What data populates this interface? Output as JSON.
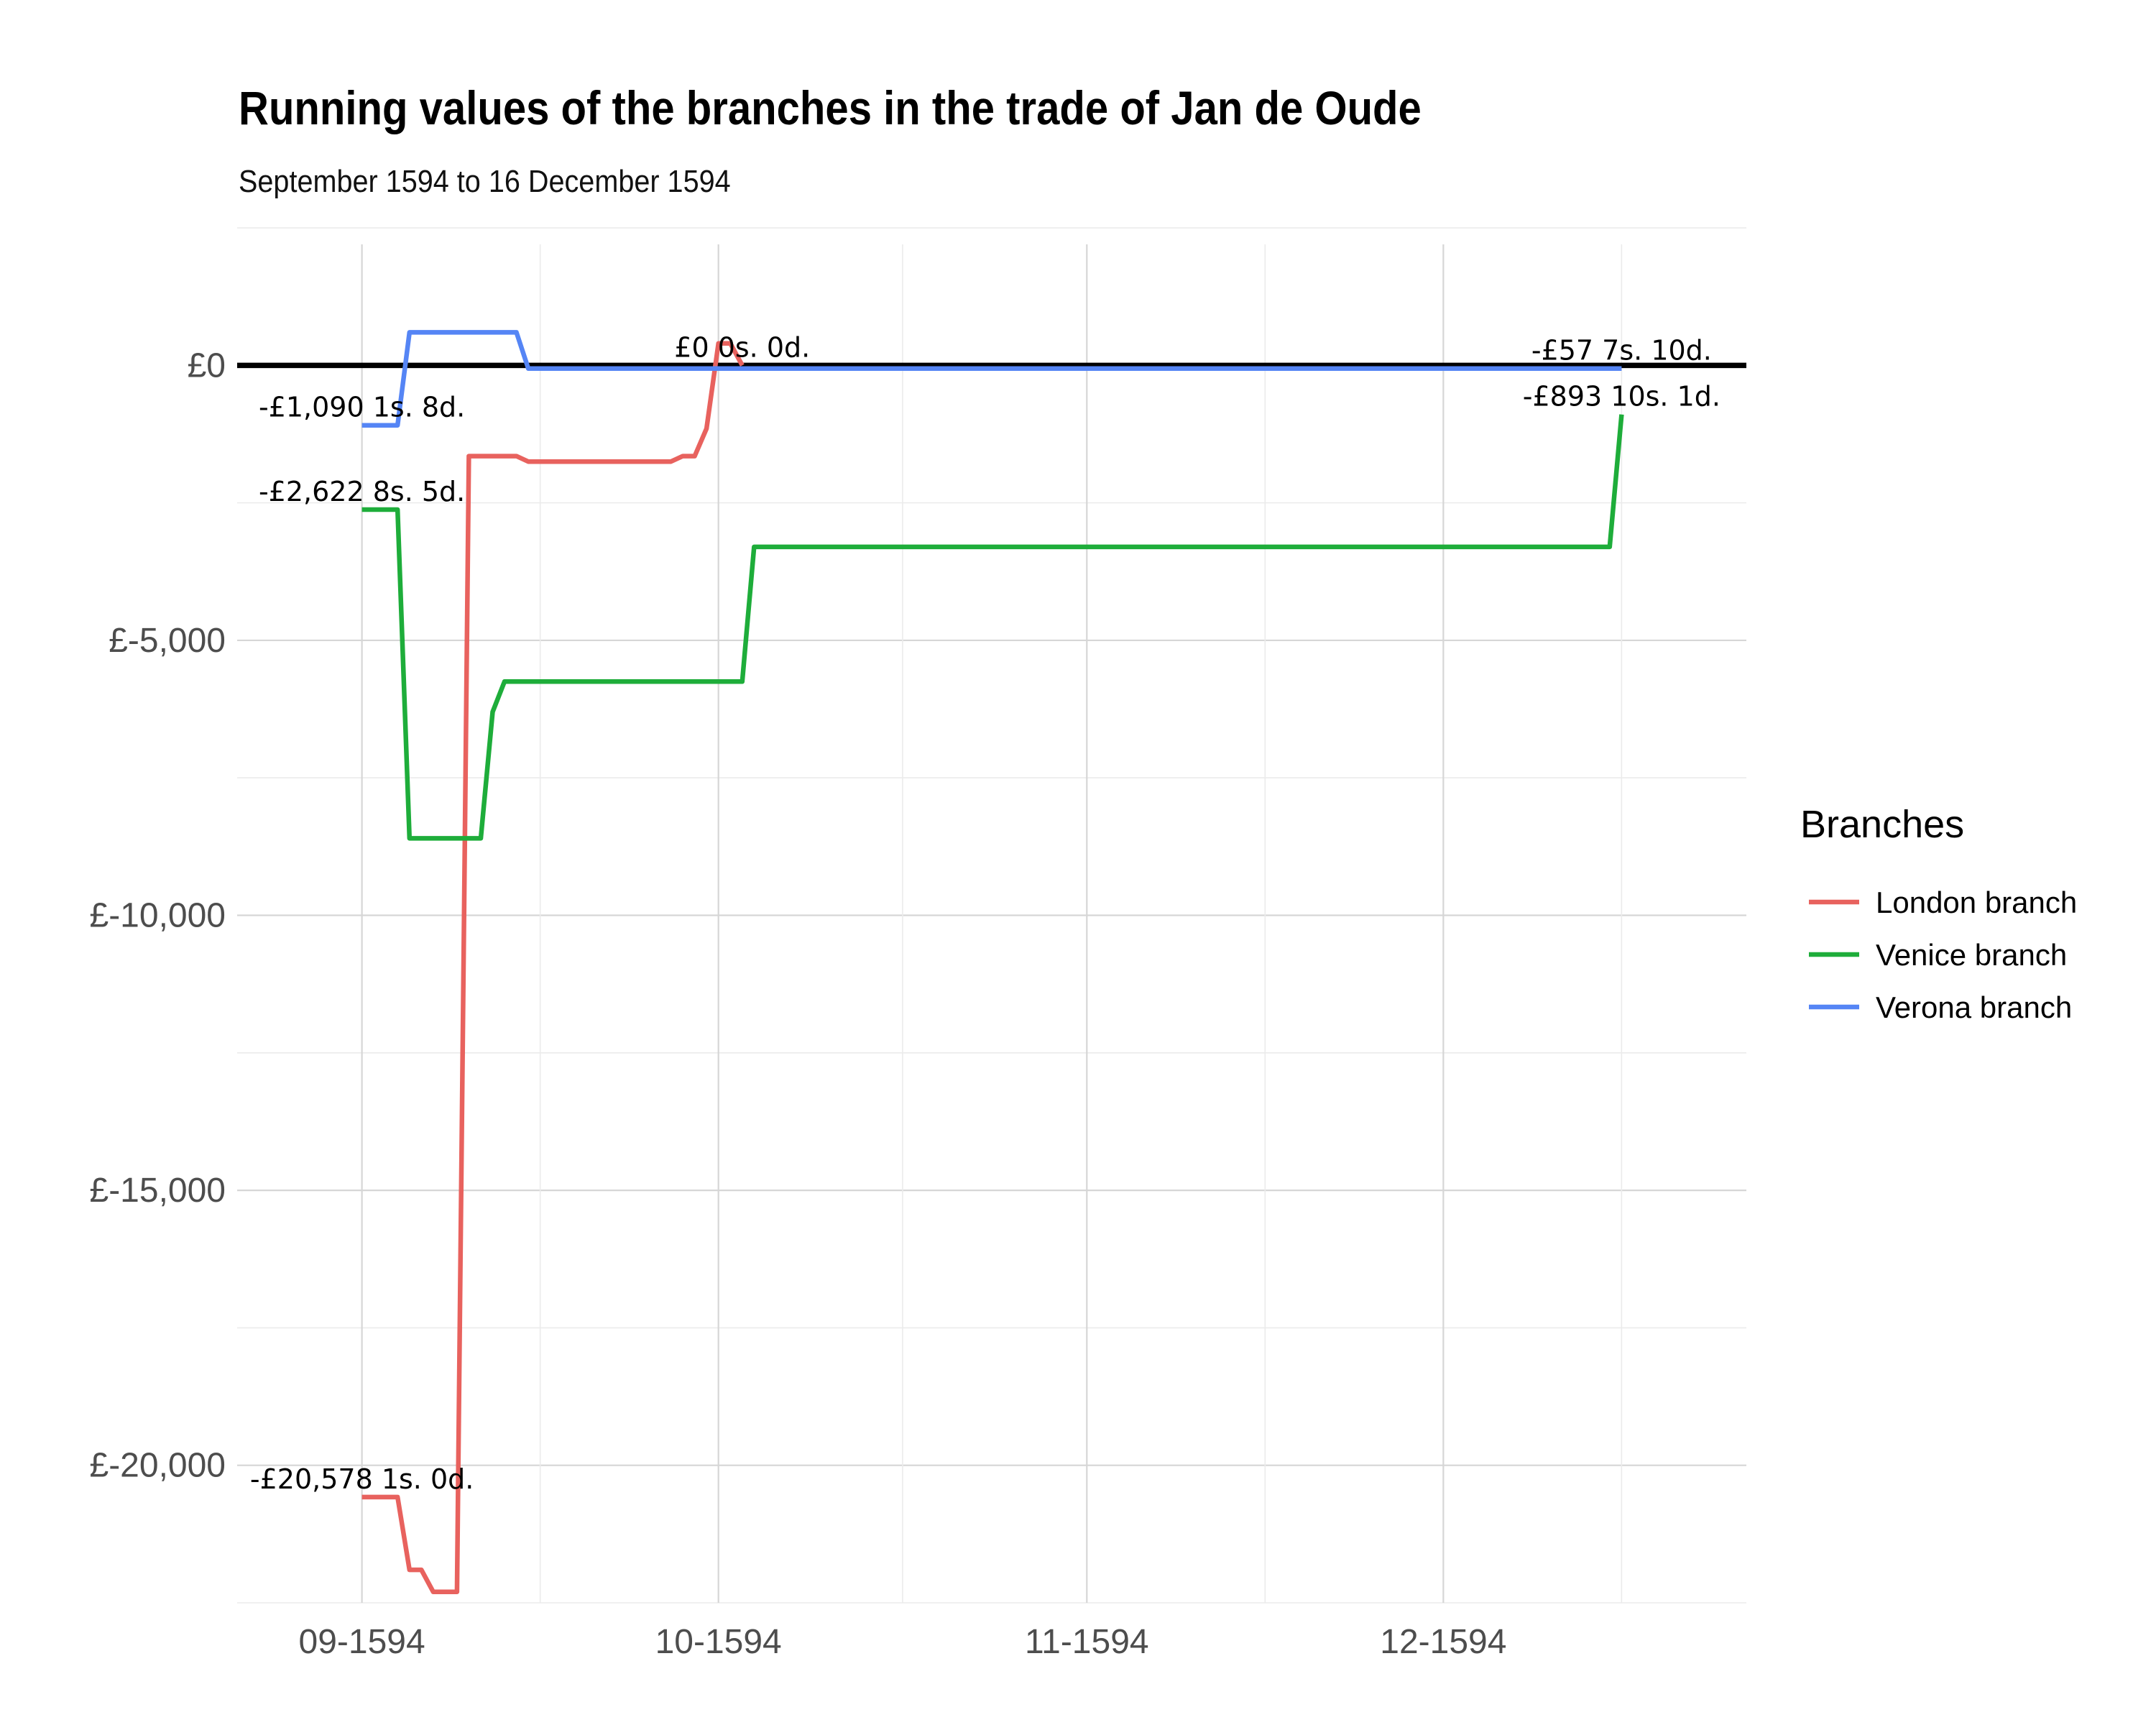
{
  "chart_data": {
    "type": "line",
    "title": "Running values of the branches in the trade of Jan de Oude",
    "subtitle": "September 1594 to 16 December 1594",
    "xlabel": "",
    "ylabel": "",
    "x_ticks": [
      {
        "label": "09-1594",
        "day": 0
      },
      {
        "label": "10-1594",
        "day": 30
      },
      {
        "label": "11-1594",
        "day": 61
      },
      {
        "label": "12-1594",
        "day": 91
      }
    ],
    "xlim": [
      -10.5,
      116.5
    ],
    "y_ticks": [
      {
        "label": "£0",
        "value": 0
      },
      {
        "label": "£-5,000",
        "value": -5000
      },
      {
        "label": "£-10,000",
        "value": -10000
      },
      {
        "label": "£-15,000",
        "value": -15000
      },
      {
        "label": "£-20,000",
        "value": -20000
      }
    ],
    "ylim": [
      -22500,
      2200
    ],
    "zero_line": true,
    "grid": true,
    "legend": {
      "title": "Branches",
      "position": "right"
    },
    "series": [
      {
        "name": "London branch",
        "color": "#e8625e",
        "points": [
          [
            0,
            -20578
          ],
          [
            3,
            -20578
          ],
          [
            4,
            -21900
          ],
          [
            5,
            -21900
          ],
          [
            6,
            -22300
          ],
          [
            8,
            -22300
          ],
          [
            9,
            -1650
          ],
          [
            13,
            -1650
          ],
          [
            14,
            -1750
          ],
          [
            26,
            -1750
          ],
          [
            27,
            -1650
          ],
          [
            28,
            -1650
          ],
          [
            29,
            -1150
          ],
          [
            30,
            400
          ],
          [
            31,
            400
          ],
          [
            32,
            0
          ]
        ]
      },
      {
        "name": "Venice branch",
        "color": "#1ead3a",
        "points": [
          [
            0,
            -2622
          ],
          [
            3,
            -2622
          ],
          [
            4,
            -8600
          ],
          [
            10,
            -8600
          ],
          [
            11,
            -6300
          ],
          [
            12,
            -5750
          ],
          [
            32,
            -5750
          ],
          [
            33,
            -3300
          ],
          [
            105,
            -3300
          ],
          [
            106,
            -893
          ]
        ]
      },
      {
        "name": "Verona branch",
        "color": "#5585f5",
        "points": [
          [
            0,
            -1090
          ],
          [
            3,
            -1090
          ],
          [
            4,
            600
          ],
          [
            13,
            600
          ],
          [
            14,
            -57
          ],
          [
            106,
            -57
          ]
        ]
      }
    ],
    "annotations": [
      {
        "text": "-£1,090 1s. 8d.",
        "x": 0,
        "y": -1090,
        "pos": "above"
      },
      {
        "text": "-£2,622 8s. 5d.",
        "x": 0,
        "y": -2622,
        "pos": "above"
      },
      {
        "text": "-£20,578 1s. 0d.",
        "x": 0,
        "y": -20578,
        "pos": "above"
      },
      {
        "text": "£0 0s. 0d.",
        "x": 32,
        "y": 0,
        "pos": "above"
      },
      {
        "text": "-£57 7s. 10d.",
        "x": 106,
        "y": -57,
        "pos": "above"
      },
      {
        "text": "-£893 10s. 1d.",
        "x": 106,
        "y": -893,
        "pos": "above"
      }
    ]
  }
}
